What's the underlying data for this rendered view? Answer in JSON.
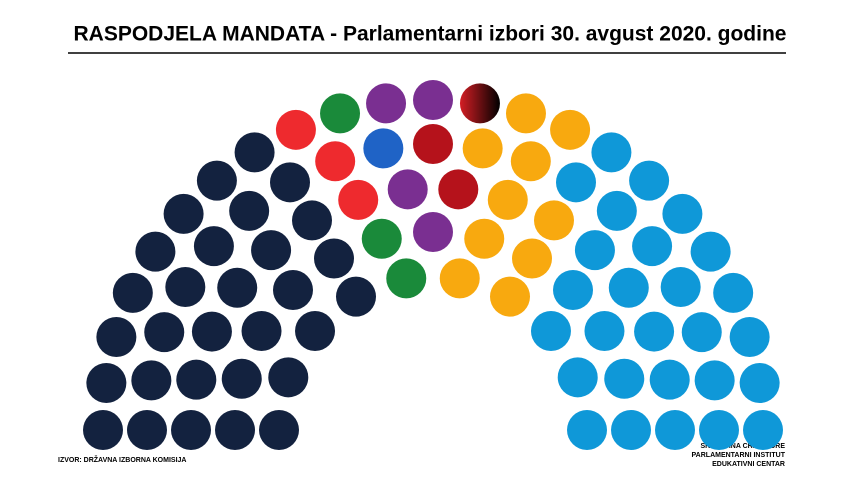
{
  "chart_data": {
    "type": "parliament",
    "title": "RASPODJELA MANDATA - Parlamentarni izbori 30. avgust 2020. godine",
    "source": "IZVOR: DRŽAVNA IZBORNA KOMISIJA",
    "credit": [
      "SKUPŠTINA CRNE GORE",
      "PARLAMENTARNI INSTITUT",
      "EDUKATIVNI CENTAR"
    ],
    "seats": [
      {
        "color": "#13223f",
        "count": 30
      },
      {
        "color": "#ee2a2e",
        "count": 3
      },
      {
        "color": "#1a8a3a",
        "count": 3
      },
      {
        "color": "#1f63c6",
        "count": 1
      },
      {
        "color": "#7a2f91",
        "count": 4
      },
      {
        "color": "#b5121b",
        "count": 2
      },
      {
        "color": "gradient",
        "count": 1
      },
      {
        "color": "#f8a90f",
        "count": 10
      },
      {
        "color": "#0f98d8",
        "count": 27
      }
    ]
  }
}
